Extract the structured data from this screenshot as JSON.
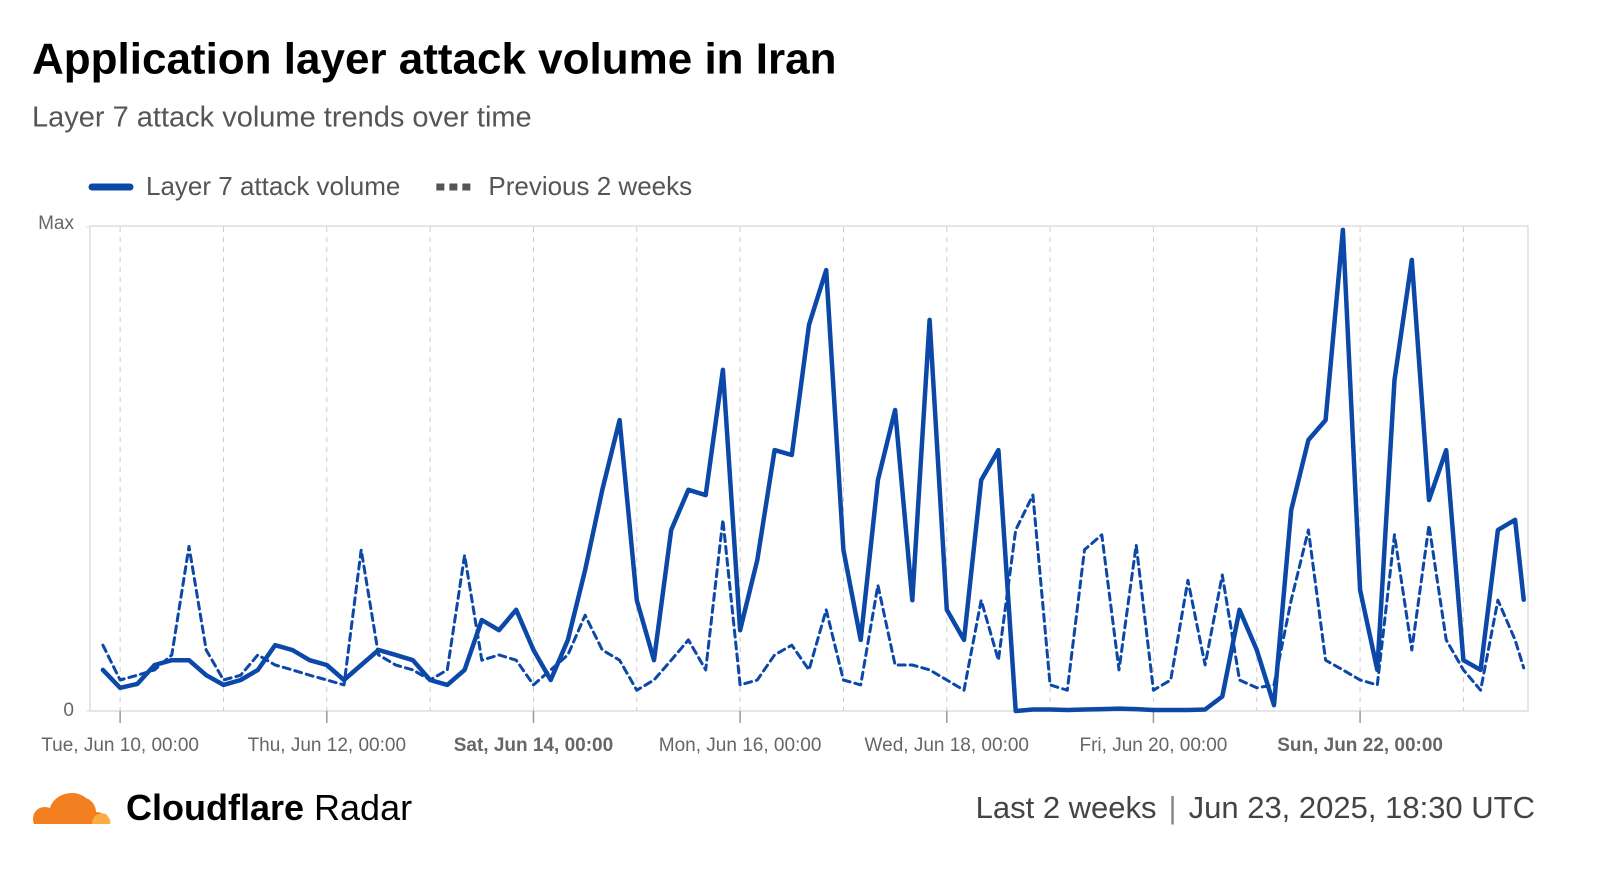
{
  "chart_data": {
    "type": "line",
    "title": "Application layer attack volume in Iran",
    "subtitle": "Layer 7 attack volume trends over time",
    "x": [
      "Jun 9, 20:00",
      "Jun 10, 00:00",
      "Jun 10, 04:00",
      "Jun 10, 08:00",
      "Jun 10, 12:00",
      "Jun 10, 16:00",
      "Jun 10, 20:00",
      "Jun 11, 00:00",
      "Jun 11, 04:00",
      "Jun 11, 08:00",
      "Jun 11, 12:00",
      "Jun 11, 16:00",
      "Jun 11, 20:00",
      "Jun 12, 00:00",
      "Jun 12, 04:00",
      "Jun 12, 08:00",
      "Jun 12, 12:00",
      "Jun 12, 16:00",
      "Jun 12, 20:00",
      "Jun 13, 00:00",
      "Jun 13, 04:00",
      "Jun 13, 08:00",
      "Jun 13, 12:00",
      "Jun 13, 16:00",
      "Jun 13, 20:00",
      "Jun 14, 00:00",
      "Jun 14, 04:00",
      "Jun 14, 08:00",
      "Jun 14, 12:00",
      "Jun 14, 16:00",
      "Jun 14, 20:00",
      "Jun 15, 00:00",
      "Jun 15, 04:00",
      "Jun 15, 08:00",
      "Jun 15, 12:00",
      "Jun 15, 16:00",
      "Jun 15, 20:00",
      "Jun 16, 00:00",
      "Jun 16, 04:00",
      "Jun 16, 08:00",
      "Jun 16, 12:00",
      "Jun 16, 16:00",
      "Jun 16, 20:00",
      "Jun 17, 00:00",
      "Jun 17, 04:00",
      "Jun 17, 08:00",
      "Jun 17, 12:00",
      "Jun 17, 16:00",
      "Jun 17, 20:00",
      "Jun 18, 00:00",
      "Jun 18, 04:00",
      "Jun 18, 08:00",
      "Jun 18, 12:00",
      "Jun 18, 16:00",
      "Jun 18, 20:00",
      "Jun 19, 00:00",
      "Jun 19, 04:00",
      "Jun 19, 08:00",
      "Jun 19, 12:00",
      "Jun 19, 16:00",
      "Jun 19, 20:00",
      "Jun 20, 00:00",
      "Jun 20, 04:00",
      "Jun 20, 08:00",
      "Jun 20, 12:00",
      "Jun 20, 16:00",
      "Jun 20, 20:00",
      "Jun 21, 00:00",
      "Jun 21, 04:00",
      "Jun 21, 08:00",
      "Jun 21, 12:00",
      "Jun 21, 16:00",
      "Jun 21, 20:00",
      "Jun 22, 00:00",
      "Jun 22, 04:00",
      "Jun 22, 08:00",
      "Jun 22, 12:00",
      "Jun 22, 16:00",
      "Jun 22, 20:00",
      "Jun 23, 00:00",
      "Jun 23, 04:00",
      "Jun 23, 08:00",
      "Jun 23, 12:00",
      "Jun 23, 14:00"
    ],
    "series": [
      {
        "name": "Layer 7 attack volume",
        "color": "#0b48a8",
        "dash": false,
        "values": [
          8.5,
          4.8,
          5.6,
          9.5,
          10.5,
          10.5,
          7.4,
          5.4,
          6.4,
          8.5,
          13.6,
          12.6,
          10.5,
          9.5,
          6.4,
          9.5,
          12.6,
          11.6,
          10.5,
          6.4,
          5.4,
          8.5,
          18.8,
          16.7,
          20.9,
          12.6,
          6.4,
          14.7,
          29.1,
          45.7,
          60.1,
          22.9,
          10.5,
          37.4,
          45.7,
          44.6,
          70.5,
          16.7,
          31.2,
          53.9,
          52.9,
          79.8,
          91.1,
          33.3,
          14.7,
          47.7,
          62.2,
          22.9,
          80.8,
          20.9,
          14.7,
          47.7,
          53.9,
          0,
          0.3,
          0.3,
          0.2,
          0.3,
          0.4,
          0.5,
          0.4,
          0.2,
          0.2,
          0.2,
          0.3,
          3,
          20.9,
          12.6,
          1.2,
          41.5,
          56,
          60.1,
          99.4,
          25,
          8.5,
          68.4,
          93.2,
          43.6,
          53.9,
          10.5,
          8.5,
          37.4,
          39.5,
          23
        ]
      },
      {
        "name": "Previous 2 weeks",
        "color": "#0b48a8",
        "dash": true,
        "values": [
          13.6,
          6.4,
          7.4,
          8.5,
          11.6,
          34,
          12.6,
          6.4,
          7.4,
          11.6,
          9.5,
          8.5,
          7.4,
          6.4,
          5.4,
          33.3,
          11.6,
          9.5,
          8.5,
          6.4,
          8.5,
          32.2,
          10.5,
          11.6,
          10.5,
          5.4,
          8.5,
          11.6,
          19.8,
          12.6,
          10.5,
          4.3,
          6.4,
          10.5,
          14.7,
          8.5,
          39.5,
          5.4,
          6.4,
          11.6,
          13.6,
          8.5,
          20.9,
          6.4,
          5.4,
          26,
          9.5,
          9.5,
          8.5,
          6.4,
          4.3,
          22.9,
          10.5,
          37.4,
          44.6,
          5.4,
          4.3,
          33.3,
          36.4,
          8.5,
          34.3,
          4.3,
          6.4,
          27,
          9.5,
          28.1,
          6.4,
          4.8,
          5.4,
          22.9,
          37.4,
          10.5,
          8.5,
          6.4,
          5.4,
          36.4,
          12.6,
          38.4,
          14.7,
          8.5,
          4.3,
          22.9,
          14.7,
          8.9
        ]
      }
    ],
    "xlim": [
      "Jun 9, 17:00",
      "Jun 23, 15:00"
    ],
    "xticks": [
      {
        "value": "Jun 10, 00:00",
        "label": "Tue, Jun 10, 00:00"
      },
      {
        "value": "Jun 12, 00:00",
        "label": "Thu, Jun 12, 00:00"
      },
      {
        "value": "Jun 14, 00:00",
        "label": "Sat, Jun 14, 00:00"
      },
      {
        "value": "Jun 16, 00:00",
        "label": "Mon, Jun 16, 00:00"
      },
      {
        "value": "Jun 18, 00:00",
        "label": "Wed, Jun 18, 00:00"
      },
      {
        "value": "Jun 20, 00:00",
        "label": "Fri, Jun 20, 00:00"
      },
      {
        "value": "Jun 22, 00:00",
        "label": "Sun, Jun 22, 00:00"
      }
    ],
    "xgrid": [
      "Jun 10, 00:00",
      "Jun 11, 00:00",
      "Jun 12, 00:00",
      "Jun 13, 00:00",
      "Jun 14, 00:00",
      "Jun 15, 00:00",
      "Jun 16, 00:00",
      "Jun 17, 00:00",
      "Jun 18, 00:00",
      "Jun 19, 00:00",
      "Jun 20, 00:00",
      "Jun 21, 00:00",
      "Jun 22, 00:00",
      "Jun 23, 00:00"
    ],
    "ylim": [
      0,
      100
    ],
    "yticks": [
      0,
      {
        "value": 100,
        "label": "Max"
      }
    ],
    "legend": "top-left"
  },
  "footer": {
    "brand_bold": "Cloudflare",
    "brand": "Radar",
    "period": "Last 2 weeks",
    "timestamp": "Jun 23, 2025, 18:30 UTC"
  }
}
